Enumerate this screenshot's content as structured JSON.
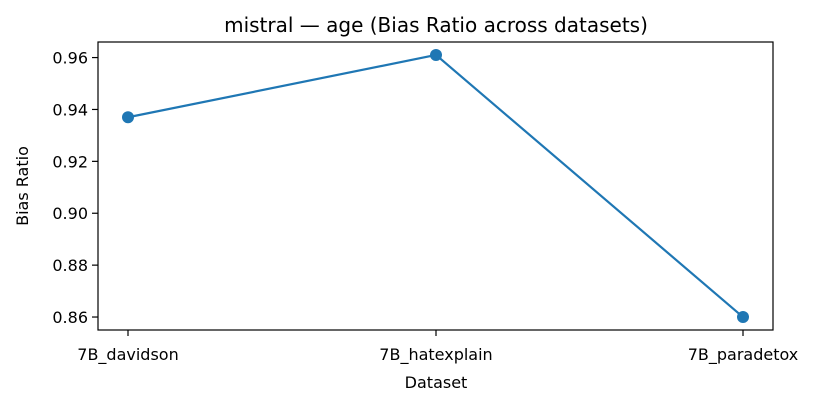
{
  "chart_data": {
    "type": "line",
    "title": "mistral — age (Bias Ratio across datasets)",
    "xlabel": "Dataset",
    "ylabel": "Bias Ratio",
    "categories": [
      "7B_davidson",
      "7B_hatexplain",
      "7B_paradetox"
    ],
    "series": [
      {
        "values": [
          0.937,
          0.961,
          0.86
        ],
        "color": "#1f77b4"
      }
    ],
    "ylim": [
      0.855,
      0.966
    ],
    "yticks": [
      0.86,
      0.88,
      0.9,
      0.92,
      0.94,
      0.96
    ],
    "ytick_labels": [
      "0.86",
      "0.88",
      "0.90",
      "0.92",
      "0.94",
      "0.96"
    ],
    "grid": false,
    "legend": "none"
  }
}
